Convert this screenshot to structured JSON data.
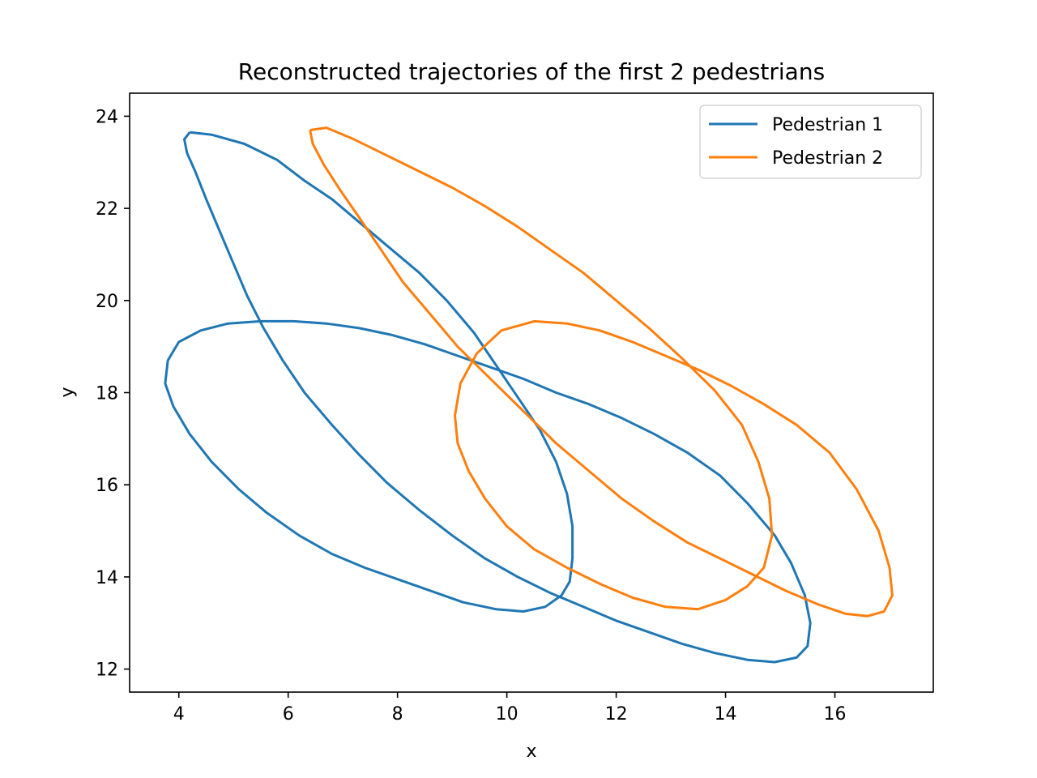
{
  "chart_data": {
    "type": "line",
    "title": "Reconstructed trajectories of the first 2 pedestrians",
    "xlabel": "x",
    "ylabel": "y",
    "xlim": [
      3.1,
      17.8
    ],
    "ylim": [
      11.5,
      24.5
    ],
    "xticks": [
      4,
      6,
      8,
      10,
      12,
      14,
      16
    ],
    "yticks": [
      12,
      14,
      16,
      18,
      20,
      22,
      24
    ],
    "grid": false,
    "legend_position": "upper right",
    "series": [
      {
        "name": "Pedestrian 1",
        "color": "#1f77b4",
        "x": [
          4.2,
          4.6,
          5.2,
          5.8,
          6.3,
          6.8,
          7.3,
          7.9,
          8.4,
          8.9,
          9.4,
          9.8,
          10.2,
          10.6,
          10.9,
          11.1,
          11.2,
          11.2,
          11.15,
          11.0,
          10.7,
          10.3,
          9.8,
          9.2,
          8.6,
          8.0,
          7.4,
          6.8,
          6.2,
          5.6,
          5.1,
          4.6,
          4.2,
          3.9,
          3.75,
          3.8,
          4.0,
          4.4,
          4.9,
          5.5,
          6.1,
          6.7,
          7.3,
          7.9,
          8.5,
          9.1,
          9.7,
          10.3,
          10.9,
          11.5,
          12.1,
          12.7,
          13.3,
          13.9,
          14.4,
          14.9,
          15.2,
          15.45,
          15.55,
          15.5,
          15.3,
          14.9,
          14.4,
          13.8,
          13.2,
          12.6,
          12.0,
          11.4,
          10.8,
          10.2,
          9.6,
          9.0,
          8.4,
          7.8,
          7.3,
          6.8,
          6.3,
          5.9,
          5.55,
          5.25,
          5.0,
          4.75,
          4.5,
          4.3,
          4.15,
          4.1,
          4.2
        ],
        "y": [
          23.65,
          23.6,
          23.4,
          23.05,
          22.6,
          22.2,
          21.7,
          21.1,
          20.6,
          20.0,
          19.3,
          18.6,
          17.9,
          17.2,
          16.5,
          15.8,
          15.1,
          14.4,
          13.9,
          13.6,
          13.35,
          13.25,
          13.3,
          13.45,
          13.7,
          13.95,
          14.2,
          14.5,
          14.9,
          15.4,
          15.9,
          16.5,
          17.1,
          17.7,
          18.2,
          18.7,
          19.1,
          19.35,
          19.5,
          19.55,
          19.55,
          19.5,
          19.4,
          19.25,
          19.05,
          18.8,
          18.55,
          18.3,
          18.0,
          17.75,
          17.45,
          17.1,
          16.7,
          16.2,
          15.6,
          14.9,
          14.3,
          13.6,
          13.0,
          12.5,
          12.25,
          12.15,
          12.2,
          12.35,
          12.55,
          12.8,
          13.05,
          13.35,
          13.65,
          14.0,
          14.4,
          14.9,
          15.45,
          16.05,
          16.65,
          17.3,
          18.0,
          18.7,
          19.4,
          20.1,
          20.8,
          21.5,
          22.2,
          22.8,
          23.2,
          23.5,
          23.65
        ]
      },
      {
        "name": "Pedestrian 2",
        "color": "#ff7f0e",
        "x": [
          6.4,
          6.7,
          7.2,
          7.8,
          8.4,
          9.0,
          9.6,
          10.2,
          10.8,
          11.4,
          12.0,
          12.6,
          13.2,
          13.8,
          14.3,
          14.6,
          14.8,
          14.85,
          14.7,
          14.4,
          14.0,
          13.5,
          12.9,
          12.3,
          11.7,
          11.1,
          10.5,
          10.0,
          9.6,
          9.3,
          9.1,
          9.05,
          9.15,
          9.45,
          9.9,
          10.5,
          11.1,
          11.7,
          12.3,
          12.9,
          13.5,
          14.1,
          14.7,
          15.3,
          15.9,
          16.4,
          16.8,
          17.0,
          17.05,
          16.9,
          16.6,
          16.2,
          15.7,
          15.1,
          14.5,
          13.9,
          13.3,
          12.7,
          12.1,
          11.5,
          10.9,
          10.3,
          9.7,
          9.1,
          8.6,
          8.1,
          7.7,
          7.3,
          6.95,
          6.65,
          6.45,
          6.4
        ],
        "y": [
          23.7,
          23.75,
          23.5,
          23.15,
          22.8,
          22.45,
          22.05,
          21.6,
          21.1,
          20.6,
          20.0,
          19.4,
          18.75,
          18.05,
          17.3,
          16.5,
          15.7,
          14.9,
          14.2,
          13.8,
          13.5,
          13.3,
          13.35,
          13.55,
          13.85,
          14.2,
          14.6,
          15.1,
          15.7,
          16.3,
          16.9,
          17.5,
          18.2,
          18.85,
          19.35,
          19.55,
          19.5,
          19.35,
          19.1,
          18.8,
          18.5,
          18.15,
          17.75,
          17.3,
          16.7,
          15.9,
          15.0,
          14.2,
          13.6,
          13.25,
          13.15,
          13.2,
          13.4,
          13.7,
          14.05,
          14.4,
          14.75,
          15.2,
          15.7,
          16.3,
          16.9,
          17.6,
          18.3,
          19.0,
          19.7,
          20.4,
          21.1,
          21.8,
          22.4,
          22.95,
          23.4,
          23.7
        ]
      }
    ]
  }
}
